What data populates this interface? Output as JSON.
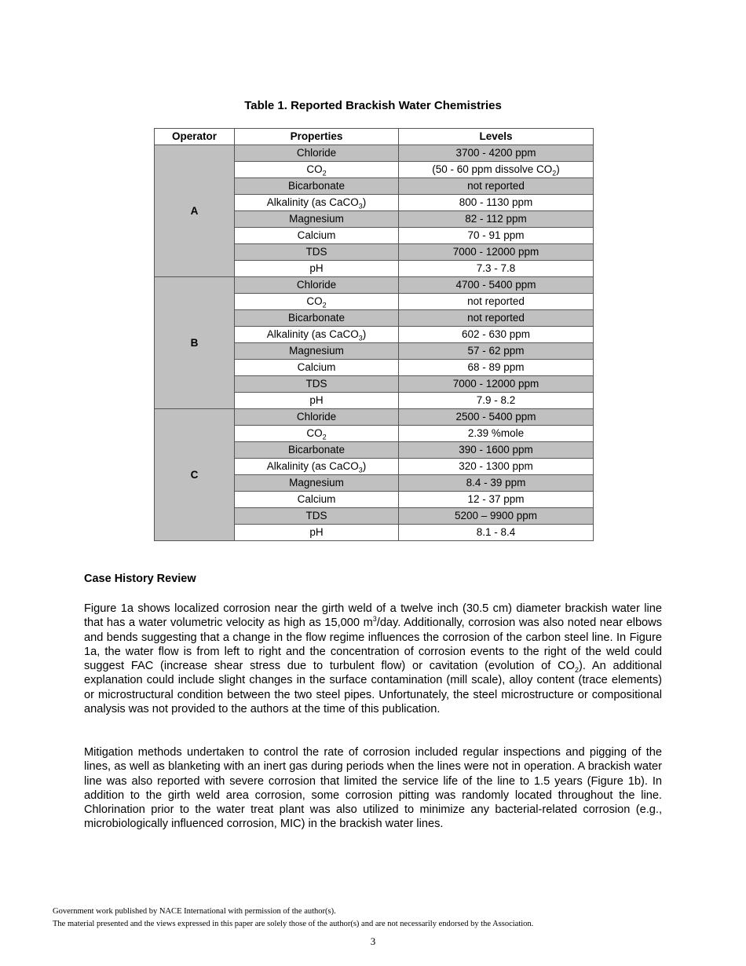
{
  "table": {
    "title": "Table 1.  Reported Brackish Water Chemistries",
    "headers": [
      "Operator",
      "Properties",
      "Levels"
    ],
    "groups": [
      {
        "operator": "A",
        "rows": [
          {
            "property": [
              {
                "t": "Chloride"
              }
            ],
            "level": [
              {
                "t": "3700 - 4200 ppm"
              }
            ]
          },
          {
            "property": [
              {
                "t": "CO"
              },
              {
                "sub": "2"
              }
            ],
            "level": [
              {
                "t": "(50 - 60 ppm dissolve CO"
              },
              {
                "sub": "2"
              },
              {
                "t": ")"
              }
            ]
          },
          {
            "property": [
              {
                "t": "Bicarbonate"
              }
            ],
            "level": [
              {
                "t": "not reported"
              }
            ]
          },
          {
            "property": [
              {
                "t": "Alkalinity (as CaCO"
              },
              {
                "sub": "3"
              },
              {
                "t": ")"
              }
            ],
            "level": [
              {
                "t": "800 - 1130 ppm"
              }
            ]
          },
          {
            "property": [
              {
                "t": "Magnesium"
              }
            ],
            "level": [
              {
                "t": "82 - 112 ppm"
              }
            ]
          },
          {
            "property": [
              {
                "t": "Calcium"
              }
            ],
            "level": [
              {
                "t": "70 - 91 ppm"
              }
            ]
          },
          {
            "property": [
              {
                "t": "TDS"
              }
            ],
            "level": [
              {
                "t": "7000 - 12000 ppm"
              }
            ]
          },
          {
            "property": [
              {
                "t": "pH"
              }
            ],
            "level": [
              {
                "t": "7.3 - 7.8"
              }
            ]
          }
        ]
      },
      {
        "operator": "B",
        "rows": [
          {
            "property": [
              {
                "t": "Chloride"
              }
            ],
            "level": [
              {
                "t": "4700 - 5400 ppm"
              }
            ]
          },
          {
            "property": [
              {
                "t": "CO"
              },
              {
                "sub": "2"
              }
            ],
            "level": [
              {
                "t": "not reported"
              }
            ]
          },
          {
            "property": [
              {
                "t": "Bicarbonate"
              }
            ],
            "level": [
              {
                "t": "not reported"
              }
            ]
          },
          {
            "property": [
              {
                "t": "Alkalinity (as CaCO"
              },
              {
                "sub": "3"
              },
              {
                "t": ")"
              }
            ],
            "level": [
              {
                "t": "602 - 630 ppm"
              }
            ]
          },
          {
            "property": [
              {
                "t": "Magnesium"
              }
            ],
            "level": [
              {
                "t": "57 - 62 ppm"
              }
            ]
          },
          {
            "property": [
              {
                "t": "Calcium"
              }
            ],
            "level": [
              {
                "t": "68 - 89 ppm"
              }
            ]
          },
          {
            "property": [
              {
                "t": "TDS"
              }
            ],
            "level": [
              {
                "t": "7000 - 12000 ppm"
              }
            ]
          },
          {
            "property": [
              {
                "t": "pH"
              }
            ],
            "level": [
              {
                "t": "7.9 - 8.2"
              }
            ]
          }
        ]
      },
      {
        "operator": "C",
        "rows": [
          {
            "property": [
              {
                "t": "Chloride"
              }
            ],
            "level": [
              {
                "t": "2500 - 5400 ppm"
              }
            ]
          },
          {
            "property": [
              {
                "t": "CO"
              },
              {
                "sub": "2"
              }
            ],
            "level": [
              {
                "t": "2.39 %mole"
              }
            ]
          },
          {
            "property": [
              {
                "t": "Bicarbonate"
              }
            ],
            "level": [
              {
                "t": "390 - 1600 ppm"
              }
            ]
          },
          {
            "property": [
              {
                "t": "Alkalinity (as CaCO"
              },
              {
                "sub": "3"
              },
              {
                "t": ")"
              }
            ],
            "level": [
              {
                "t": "320 - 1300 ppm"
              }
            ]
          },
          {
            "property": [
              {
                "t": "Magnesium"
              }
            ],
            "level": [
              {
                "t": "8.4 - 39 ppm"
              }
            ]
          },
          {
            "property": [
              {
                "t": "Calcium"
              }
            ],
            "level": [
              {
                "t": "12 - 37 ppm"
              }
            ]
          },
          {
            "property": [
              {
                "t": "TDS"
              }
            ],
            "level": [
              {
                "t": "5200 – 9900 ppm"
              }
            ]
          },
          {
            "property": [
              {
                "t": "pH"
              }
            ],
            "level": [
              {
                "t": "8.1 - 8.4"
              }
            ]
          }
        ]
      }
    ]
  },
  "section": {
    "heading": "Case History Review",
    "paragraphs": [
      [
        {
          "t": "Figure 1a shows localized corrosion near the girth weld of a twelve inch (30.5 cm) diameter brackish water line that has a water volumetric velocity as high as 15,000 m"
        },
        {
          "sup": "3"
        },
        {
          "t": "/day.  Additionally, corrosion was also noted near elbows and bends suggesting that a change in the flow regime influences the corrosion of the carbon steel line.  In Figure 1a, the water flow is from left to right and the concentration of corrosion events to the right of the weld could suggest FAC (increase shear stress due to turbulent flow) or cavitation (evolution of CO"
        },
        {
          "sub": "2"
        },
        {
          "t": ").  An additional explanation could include slight changes in the surface contamination (mill scale), alloy content (trace elements) or microstructural condition between the two steel pipes.  Unfortunately, the steel microstructure or compositional analysis was not provided to the authors at the time of this publication."
        }
      ],
      [
        {
          "t": "Mitigation methods undertaken to control the rate of corrosion included regular inspections and pigging of the lines, as well as blanketing with an inert gas during periods when the lines were not in operation.  A brackish water line was also reported with severe corrosion that limited the service life of the line to 1.5 years (Figure 1b).  In addition to the girth weld area corrosion, some corrosion pitting was randomly located throughout the line.  Chlorination prior to the water treat plant was also utilized to minimize any bacterial-related corrosion (e.g., microbiologically influenced corrosion, MIC) in the brackish water lines."
        }
      ]
    ]
  },
  "footer": {
    "line1": "Government work published by NACE International with permission of the author(s).",
    "line2": "The material presented and the views expressed in this paper are solely those of the author(s) and are not necessarily endorsed by the Association.",
    "page_number": "3"
  }
}
